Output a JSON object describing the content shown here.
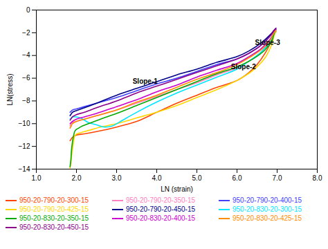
{
  "chart_data": {
    "type": "line",
    "xlabel": "LN (strain)",
    "ylabel": "LN(stress)",
    "xlim": [
      1,
      8
    ],
    "ylim": [
      -14,
      0
    ],
    "xticks": [
      1,
      2,
      3,
      4,
      5,
      6,
      7,
      8
    ],
    "yticks": [
      0,
      -2,
      -4,
      -6,
      -8,
      -10,
      -12,
      -14
    ],
    "grid": false,
    "legend": "bottom",
    "annotations": [
      {
        "text": "Slope-1",
        "x": 3.4,
        "y": -6.5
      },
      {
        "text": "Slope-2",
        "x": 5.85,
        "y": -5.2
      },
      {
        "text": "Slope-3",
        "x": 6.45,
        "y": -3.1
      }
    ],
    "series": [
      {
        "name": "950-20-790-20-300-15",
        "color": "#FF4500",
        "x": [
          1.84,
          1.86,
          1.9,
          2.0,
          2.2,
          2.5,
          3.0,
          3.5,
          4.0,
          4.5,
          5.0,
          5.5,
          6.0,
          6.3,
          6.5,
          6.7,
          6.85,
          6.92,
          6.97
        ],
        "values": [
          -11.5,
          -11.4,
          -11.2,
          -11.0,
          -10.9,
          -10.7,
          -10.3,
          -9.8,
          -9.0,
          -8.2,
          -7.5,
          -6.8,
          -6.2,
          -5.5,
          -4.8,
          -3.8,
          -2.8,
          -2.2,
          -1.9
        ]
      },
      {
        "name": "950-20-790-20-350-15",
        "color": "#FF80C0",
        "x": [
          1.84,
          1.87,
          1.9,
          2.0,
          2.2,
          2.5,
          3.0,
          3.5,
          4.0,
          4.5,
          5.0,
          5.5,
          6.0,
          6.3,
          6.6,
          6.8,
          6.92,
          6.97
        ],
        "values": [
          -10.2,
          -10.0,
          -9.9,
          -9.8,
          -9.6,
          -9.3,
          -8.8,
          -8.2,
          -7.6,
          -7.0,
          -6.4,
          -5.7,
          -5.1,
          -4.5,
          -3.7,
          -2.8,
          -2.1,
          -1.8
        ]
      },
      {
        "name": "950-20-790-20-400-15",
        "color": "#4040FF",
        "x": [
          1.84,
          1.87,
          1.9,
          2.0,
          2.2,
          2.5,
          3.0,
          3.5,
          4.0,
          4.5,
          5.0,
          5.5,
          6.0,
          6.3,
          6.6,
          6.8,
          6.92,
          6.97
        ],
        "values": [
          -9.0,
          -8.9,
          -8.8,
          -8.7,
          -8.5,
          -8.2,
          -7.7,
          -7.1,
          -6.5,
          -6.0,
          -5.4,
          -4.8,
          -4.3,
          -3.8,
          -3.1,
          -2.4,
          -1.9,
          -1.7
        ]
      },
      {
        "name": "950-20-790-20-425-15",
        "color": "#FFD700",
        "x": [
          1.84,
          1.86,
          1.88,
          1.92,
          1.97,
          2.1,
          2.3,
          2.6,
          3.0,
          3.5,
          4.0,
          4.5,
          5.0,
          5.5,
          6.0,
          6.4,
          6.7,
          6.87,
          6.93,
          6.97
        ],
        "values": [
          -13.9,
          -13.5,
          -12.8,
          -11.8,
          -11.0,
          -10.8,
          -10.6,
          -10.3,
          -10.0,
          -9.5,
          -9.0,
          -8.4,
          -7.7,
          -7.0,
          -6.2,
          -5.3,
          -4.2,
          -3.0,
          -2.2,
          -1.9
        ]
      },
      {
        "name": "950-20-790-20-450-15",
        "color": "#00008B",
        "x": [
          1.84,
          1.87,
          1.9,
          2.0,
          2.2,
          2.5,
          3.0,
          3.5,
          4.0,
          4.5,
          5.0,
          5.5,
          6.0,
          6.3,
          6.6,
          6.82,
          6.92,
          6.97
        ],
        "values": [
          -9.3,
          -9.15,
          -9.0,
          -8.85,
          -8.6,
          -8.2,
          -7.5,
          -6.9,
          -6.3,
          -5.7,
          -5.2,
          -4.6,
          -4.1,
          -3.6,
          -2.9,
          -2.2,
          -1.8,
          -1.6
        ]
      },
      {
        "name": "950-20-830-20-300-15",
        "color": "#00E5FF",
        "x": [
          1.84,
          1.87,
          1.92,
          2.1,
          2.3,
          2.5,
          2.7,
          2.9,
          3.1,
          3.5,
          4.0,
          4.5,
          5.0,
          5.5,
          6.0,
          6.3,
          6.6,
          6.82,
          6.92,
          6.97
        ],
        "values": [
          -9.6,
          -9.5,
          -9.4,
          -9.5,
          -9.9,
          -10.1,
          -10.3,
          -10.2,
          -9.8,
          -9.0,
          -8.1,
          -7.3,
          -6.6,
          -5.9,
          -5.2,
          -4.5,
          -3.7,
          -2.8,
          -2.1,
          -1.8
        ]
      },
      {
        "name": "950-20-830-20-350-15",
        "color": "#00AA00",
        "x": [
          1.84,
          1.86,
          1.88,
          1.92,
          1.97,
          2.05,
          2.15,
          2.3,
          2.6,
          3.0,
          3.5,
          4.0,
          4.5,
          5.0,
          5.5,
          6.0,
          6.4,
          6.7,
          6.87,
          6.93,
          6.97
        ],
        "values": [
          -13.8,
          -13.2,
          -12.2,
          -11.2,
          -10.6,
          -10.4,
          -10.2,
          -10.0,
          -9.6,
          -9.1,
          -8.4,
          -7.7,
          -7.0,
          -6.3,
          -5.6,
          -5.0,
          -4.3,
          -3.5,
          -2.7,
          -2.0,
          -1.7
        ]
      },
      {
        "name": "950-20-830-20-400-15",
        "color": "#CC00CC",
        "x": [
          1.84,
          1.87,
          1.9,
          2.0,
          2.2,
          2.5,
          3.0,
          3.5,
          4.0,
          4.5,
          5.0,
          5.5,
          6.0,
          6.3,
          6.6,
          6.82,
          6.92,
          6.97
        ],
        "values": [
          -10.0,
          -9.9,
          -9.8,
          -9.6,
          -9.4,
          -9.1,
          -8.5,
          -7.9,
          -7.2,
          -6.6,
          -5.9,
          -5.3,
          -4.7,
          -4.1,
          -3.4,
          -2.6,
          -2.0,
          -1.7
        ]
      },
      {
        "name": "950-20-830-20-425-15",
        "color": "#FF8C00",
        "x": [
          1.84,
          1.87,
          1.9,
          2.0,
          2.2,
          2.5,
          3.0,
          3.5,
          4.0,
          4.5,
          5.0,
          5.5,
          6.0,
          6.3,
          6.6,
          6.82,
          6.92,
          6.97
        ],
        "values": [
          -10.4,
          -10.2,
          -10.0,
          -9.8,
          -9.6,
          -9.3,
          -8.8,
          -8.1,
          -7.5,
          -6.8,
          -6.1,
          -5.5,
          -4.8,
          -4.2,
          -3.5,
          -2.7,
          -2.0,
          -1.8
        ]
      },
      {
        "name": "950-20-830-20-450-15",
        "color": "#8B008B",
        "x": [
          1.84,
          1.87,
          1.9,
          2.0,
          2.2,
          2.5,
          3.0,
          3.5,
          4.0,
          4.5,
          5.0,
          5.5,
          6.0,
          6.3,
          6.6,
          6.82,
          6.92,
          6.97
        ],
        "values": [
          -9.7,
          -9.55,
          -9.4,
          -9.2,
          -9.0,
          -8.6,
          -8.0,
          -7.3,
          -6.7,
          -6.1,
          -5.5,
          -4.9,
          -4.3,
          -3.8,
          -3.1,
          -2.3,
          -1.8,
          -1.6
        ]
      }
    ]
  }
}
